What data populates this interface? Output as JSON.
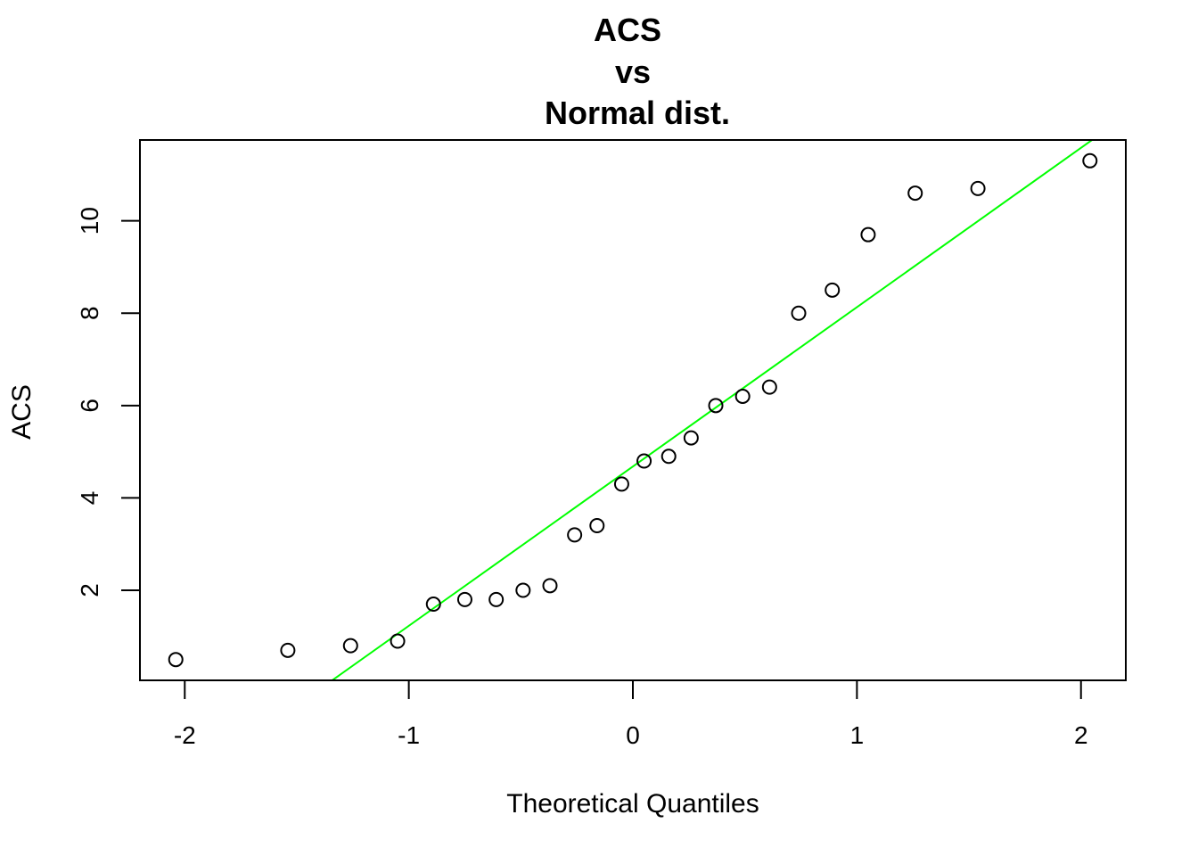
{
  "chart_data": {
    "type": "scatter",
    "title_lines": [
      "ACS",
      "vs",
      "Normal dist."
    ],
    "xlabel": "Theoretical Quantiles",
    "ylabel": "ACS",
    "xlim": [
      -2.2,
      2.2
    ],
    "ylim": [
      0.05,
      11.75
    ],
    "x_ticks": [
      -2,
      -1,
      0,
      1,
      2
    ],
    "x_tick_labels": [
      "-2",
      "-1",
      "0",
      "1",
      "2"
    ],
    "y_ticks": [
      2,
      4,
      6,
      8,
      10
    ],
    "y_tick_labels": [
      "2",
      "4",
      "6",
      "8",
      "10"
    ],
    "grid": false,
    "legend": "none",
    "points": {
      "x": [
        -2.04,
        -1.54,
        -1.26,
        -1.05,
        -0.89,
        -0.75,
        -0.61,
        -0.49,
        -0.37,
        -0.26,
        -0.16,
        -0.05,
        0.05,
        0.16,
        0.26,
        0.37,
        0.49,
        0.61,
        0.74,
        0.89,
        1.05,
        1.26,
        1.54,
        2.04
      ],
      "y": [
        0.5,
        0.7,
        0.8,
        0.9,
        1.7,
        1.8,
        1.8,
        2.0,
        2.1,
        3.2,
        3.4,
        4.3,
        4.8,
        4.9,
        5.3,
        6.0,
        6.2,
        6.4,
        8.0,
        8.5,
        9.7,
        10.6,
        10.7,
        11.3
      ],
      "marker": "open-circle",
      "color": "#000000"
    },
    "reference_line": {
      "slope": 3.45,
      "intercept": 4.68,
      "color": "#00ff00"
    }
  }
}
